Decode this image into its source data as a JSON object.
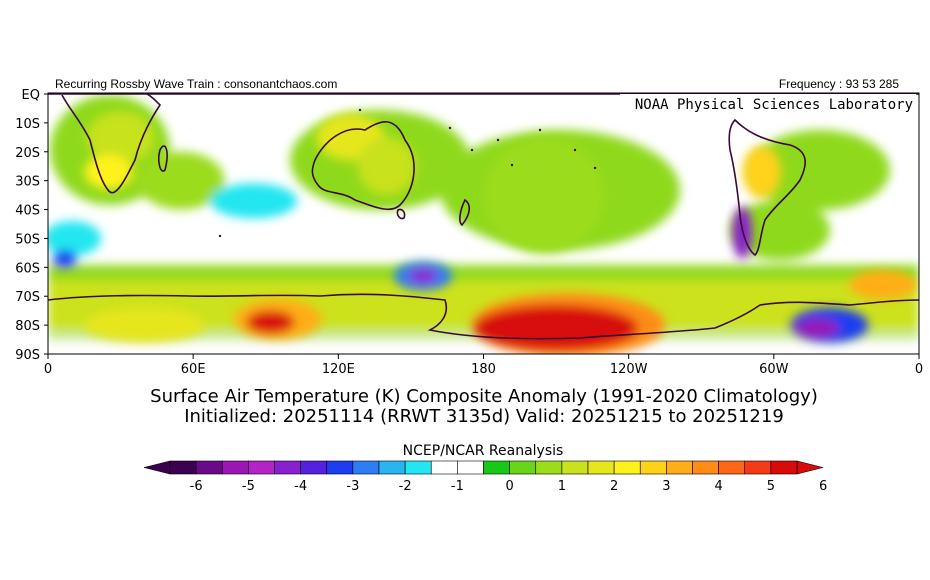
{
  "header": {
    "left_text": "Recurring Rossby Wave Train : consonantchaos.com",
    "right_text": "Frequency : 93 53 285",
    "lab_text": "NOAA Physical Sciences Laboratory"
  },
  "chart_data": {
    "type": "heatmap",
    "title_line1": "Surface Air Temperature (K) Composite Anomaly (1991-2020 Climatology)",
    "title_line2": "Initialized: 20251114 (RRWT 3135d) Valid: 20251215 to 20251219",
    "source_label": "NCEP/NCAR Reanalysis",
    "y_ticks": [
      "EQ",
      "10S",
      "20S",
      "30S",
      "40S",
      "50S",
      "60S",
      "70S",
      "80S",
      "90S"
    ],
    "x_ticks": [
      "0",
      "60E",
      "120E",
      "180",
      "120W",
      "60W",
      "0"
    ],
    "colorbar_labels": [
      "-6",
      "-5",
      "-4",
      "-3",
      "-2",
      "-1",
      "0",
      "1",
      "2",
      "3",
      "4",
      "5",
      "6"
    ],
    "colorbar_colors": [
      "#3b0052",
      "#6a0a8a",
      "#9a17b5",
      "#b522c6",
      "#8a1fd0",
      "#5520e0",
      "#1f3df0",
      "#2f7df5",
      "#2ab4f2",
      "#22e6f0",
      "#ffffff",
      "#ffffff",
      "#18c818",
      "#6ad419",
      "#9bdc1c",
      "#c8e21d",
      "#e6e61f",
      "#fff21a",
      "#ffd21a",
      "#ffad18",
      "#ff8c16",
      "#ff6616",
      "#f53a16",
      "#d80a0a"
    ],
    "xlim": [
      0,
      360
    ],
    "ylim": [
      -90,
      0
    ],
    "anomalies": [
      {
        "lon": 30,
        "lat": -15,
        "rx": 14,
        "ry": 9,
        "value": 1.5
      },
      {
        "lon": 25,
        "lat": -27,
        "rx": 10,
        "ry": 6,
        "value": 2.5
      },
      {
        "lon": 55,
        "lat": -30,
        "rx": 18,
        "ry": 10,
        "value": 1
      },
      {
        "lon": 10,
        "lat": -50,
        "rx": 12,
        "ry": 6,
        "value": -1.5
      },
      {
        "lon": 7,
        "lat": -57,
        "rx": 5,
        "ry": 3,
        "value": -3
      },
      {
        "lon": 85,
        "lat": -37,
        "rx": 18,
        "ry": 6,
        "value": -1.5
      },
      {
        "lon": 125,
        "lat": -15,
        "rx": 14,
        "ry": 8,
        "value": 2
      },
      {
        "lon": 140,
        "lat": -25,
        "rx": 12,
        "ry": 10,
        "value": 1.5
      },
      {
        "lon": 155,
        "lat": -63,
        "rx": 12,
        "ry": 5,
        "value": -2.5
      },
      {
        "lon": 155,
        "lat": -63,
        "rx": 6,
        "ry": 2.5,
        "value": -4
      },
      {
        "lon": 95,
        "lat": -78,
        "rx": 18,
        "ry": 7,
        "value": 3.5
      },
      {
        "lon": 92,
        "lat": -79,
        "rx": 10,
        "ry": 4,
        "value": 5.5
      },
      {
        "lon": 215,
        "lat": -80,
        "rx": 40,
        "ry": 11,
        "value": 4
      },
      {
        "lon": 210,
        "lat": -81,
        "rx": 34,
        "ry": 8,
        "value": 5.8
      },
      {
        "lon": 205,
        "lat": -35,
        "rx": 25,
        "ry": 20,
        "value": 1
      },
      {
        "lon": 295,
        "lat": -27,
        "rx": 8,
        "ry": 9,
        "value": 3
      },
      {
        "lon": 287,
        "lat": -48,
        "rx": 4,
        "ry": 9,
        "value": -4
      },
      {
        "lon": 323,
        "lat": -80,
        "rx": 16,
        "ry": 6,
        "value": -3
      },
      {
        "lon": 318,
        "lat": -81,
        "rx": 9,
        "ry": 3,
        "value": -5
      },
      {
        "lon": 345,
        "lat": -66,
        "rx": 14,
        "ry": 5,
        "value": 3.5
      },
      {
        "lon": 40,
        "lat": -80,
        "rx": 25,
        "ry": 6,
        "value": 2
      }
    ]
  }
}
